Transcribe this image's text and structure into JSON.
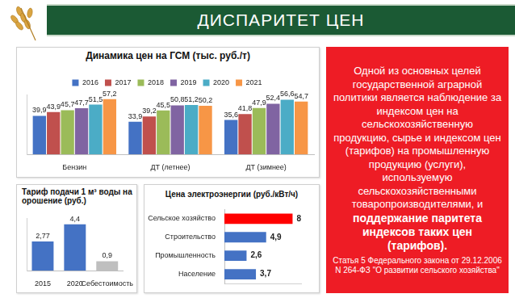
{
  "header": {
    "title": "ДИСПАРИТЕТ ЦЕН"
  },
  "chart_data": [
    {
      "type": "bar",
      "title": "Динамика цен на ГСМ (тыс. руб./т)",
      "categories": [
        "Бензин",
        "ДТ (летнее)",
        "ДТ (зимнее)"
      ],
      "series": [
        {
          "name": "2016",
          "color": "#4472c4",
          "values": [
            39.9,
            33.9,
            35.6
          ],
          "value_labels": [
            "39,9",
            "33,9",
            "35,6"
          ]
        },
        {
          "name": "2017",
          "color": "#c0504d",
          "values": [
            43.9,
            39.2,
            41.8
          ],
          "value_labels": [
            "43,9",
            "39,2",
            "41,8"
          ]
        },
        {
          "name": "2018",
          "color": "#9bbb59",
          "values": [
            45.7,
            45.5,
            47.9
          ],
          "value_labels": [
            "45,7",
            "45,5",
            "47,9"
          ]
        },
        {
          "name": "2019",
          "color": "#8064a2",
          "values": [
            47.7,
            50.8,
            52.4
          ],
          "value_labels": [
            "47,7",
            "50,8",
            "52,4"
          ]
        },
        {
          "name": "2020",
          "color": "#4bacc6",
          "values": [
            51.5,
            51.2,
            56.6
          ],
          "value_labels": [
            "51,5",
            "51,2",
            "56,6"
          ]
        },
        {
          "name": "2021",
          "color": "#f79646",
          "values": [
            57.2,
            50.2,
            54.7
          ],
          "value_labels": [
            "57,2",
            "50,2",
            "54,7"
          ]
        }
      ],
      "ylim": [
        0,
        62
      ],
      "grid": false,
      "legend": "top",
      "data_labels": true,
      "tick_labels": "x"
    },
    {
      "type": "bar",
      "title": "Тариф подачи 1 м³ воды на орошение (руб.)",
      "categories": [
        "2015",
        "2020",
        "Себестоимость"
      ],
      "values": [
        2.77,
        4.4,
        0.9
      ],
      "value_labels": [
        "2,77",
        "4,4",
        "0,9"
      ],
      "colors": [
        "#4472c4",
        "#4472c4",
        "#bfbfbf"
      ],
      "ylim": [
        0,
        5
      ],
      "grid": false,
      "data_labels": true,
      "tick_labels": "x"
    },
    {
      "type": "bar",
      "orientation": "horizontal",
      "title": "Цена электроэнергии (руб./кВт/ч)",
      "categories": [
        "Сельское хозяйство",
        "Строительство",
        "Промышленность",
        "Население"
      ],
      "values": [
        8,
        4.9,
        2.6,
        3.7
      ],
      "value_labels": [
        "8",
        "4,9",
        "2,6",
        "3,7"
      ],
      "colors": [
        "#ff0000",
        "#4472c4",
        "#4472c4",
        "#4472c4"
      ],
      "xlim": [
        0,
        9
      ],
      "grid": false,
      "data_labels": true,
      "tick_labels": "y"
    }
  ],
  "text_box": {
    "text": "Одной из основных целей государственной аграрной политики является наблюдение за индексом цен на сельскохозяйственную продукцию, сырье и индексом цен (тарифов) на промышленную продукцию (услуги), используемую сельскохозяйственными товаропроизводителями, и",
    "emphasis": "поддержание паритета индексов таких цен (тарифов).",
    "source": "Статья 5 Федерального закона от 29.12.2006 N 264-ФЗ \"О развитии сельского хозяйства\""
  }
}
